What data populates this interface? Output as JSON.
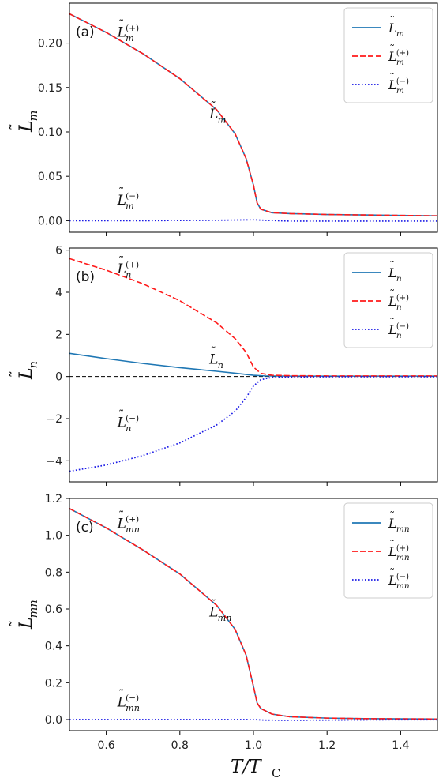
{
  "figure": {
    "xlabel": {
      "main": "T/T",
      "sub": "C"
    }
  },
  "chart_data": [
    {
      "type": "line",
      "panel": "(a)",
      "ylabel": {
        "main": "L",
        "sub": "m"
      },
      "xlim": [
        0.5,
        1.5
      ],
      "ylim": [
        -0.013,
        0.245
      ],
      "x_ticks": [
        0.6,
        0.8,
        1.0,
        1.2,
        1.4
      ],
      "x_tick_labels": [
        "0.6",
        "0.8",
        "1.0",
        "1.2",
        "1.4"
      ],
      "y_ticks": [
        0.0,
        0.05,
        0.1,
        0.15,
        0.2
      ],
      "y_tick_labels": [
        "0.00",
        "0.05",
        "0.10",
        "0.15",
        "0.20"
      ],
      "x_tick_labels_visible": false,
      "zero_line": false,
      "legend_position": "top-right",
      "series": [
        {
          "name_main": "L",
          "sub": "m",
          "sup": "",
          "style": "solid",
          "color": "#1f77b4",
          "x": [
            0.5,
            0.6,
            0.7,
            0.8,
            0.9,
            0.95,
            0.98,
            1.0,
            1.01,
            1.02,
            1.05,
            1.1,
            1.2,
            1.3,
            1.4,
            1.5
          ],
          "y": [
            0.233,
            0.212,
            0.188,
            0.16,
            0.125,
            0.098,
            0.07,
            0.04,
            0.02,
            0.013,
            0.009,
            0.008,
            0.007,
            0.0065,
            0.006,
            0.0055
          ]
        },
        {
          "name_main": "L",
          "sub": "m",
          "sup": "(+)",
          "style": "dashed",
          "color": "#ff1a1a",
          "x": [
            0.5,
            0.6,
            0.7,
            0.8,
            0.9,
            0.95,
            0.98,
            1.0,
            1.01,
            1.02,
            1.05,
            1.1,
            1.2,
            1.3,
            1.4,
            1.5
          ],
          "y": [
            0.233,
            0.212,
            0.188,
            0.16,
            0.125,
            0.098,
            0.07,
            0.04,
            0.02,
            0.013,
            0.009,
            0.008,
            0.007,
            0.0065,
            0.006,
            0.0055
          ]
        },
        {
          "name_main": "L",
          "sub": "m",
          "sup": "(−)",
          "style": "dotted",
          "color": "#1a1ae6",
          "x": [
            0.5,
            0.7,
            0.9,
            1.0,
            1.03,
            1.1,
            1.2,
            1.3,
            1.4,
            1.5
          ],
          "y": [
            0.0,
            0.0,
            0.0005,
            0.001,
            0.0005,
            -0.0005,
            -0.0005,
            -0.0005,
            -0.0005,
            -0.0005
          ]
        }
      ],
      "annotations": [
        {
          "main": "L",
          "sub": "m",
          "sup": "(+)",
          "x": 0.63,
          "y": 0.207
        },
        {
          "main": "L",
          "sub": "m",
          "sup": "",
          "x": 0.88,
          "y": 0.115
        },
        {
          "main": "L",
          "sub": "m",
          "sup": "(−)",
          "x": 0.63,
          "y": 0.018
        }
      ]
    },
    {
      "type": "line",
      "panel": "(b)",
      "ylabel": {
        "main": "L",
        "sub": "n"
      },
      "xlim": [
        0.5,
        1.5
      ],
      "ylim": [
        -5.0,
        6.1
      ],
      "x_ticks": [
        0.6,
        0.8,
        1.0,
        1.2,
        1.4
      ],
      "x_tick_labels": [
        "0.6",
        "0.8",
        "1.0",
        "1.2",
        "1.4"
      ],
      "y_ticks": [
        -4,
        -2,
        0,
        2,
        4,
        6
      ],
      "y_tick_labels": [
        "−4",
        "−2",
        "0",
        "2",
        "4",
        "6"
      ],
      "x_tick_labels_visible": false,
      "zero_line": true,
      "legend_position": "top-right",
      "series": [
        {
          "name_main": "L",
          "sub": "n",
          "sup": "",
          "style": "solid",
          "color": "#1f77b4",
          "x": [
            0.5,
            0.6,
            0.7,
            0.8,
            0.9,
            0.95,
            1.0,
            1.03,
            1.1,
            1.2,
            1.3,
            1.4,
            1.5
          ],
          "y": [
            1.1,
            0.85,
            0.62,
            0.42,
            0.25,
            0.16,
            0.06,
            0.03,
            0.02,
            0.02,
            0.02,
            0.02,
            0.02
          ]
        },
        {
          "name_main": "L",
          "sub": "n",
          "sup": "(+)",
          "style": "dashed",
          "color": "#ff1a1a",
          "x": [
            0.5,
            0.6,
            0.7,
            0.8,
            0.9,
            0.95,
            0.98,
            1.0,
            1.02,
            1.05,
            1.1,
            1.2,
            1.3,
            1.4,
            1.5
          ],
          "y": [
            5.6,
            5.05,
            4.4,
            3.6,
            2.55,
            1.8,
            1.15,
            0.45,
            0.15,
            0.06,
            0.04,
            0.03,
            0.03,
            0.03,
            0.03
          ]
        },
        {
          "name_main": "L",
          "sub": "n",
          "sup": "(−)",
          "style": "dotted",
          "color": "#1a1ae6",
          "x": [
            0.5,
            0.6,
            0.7,
            0.8,
            0.9,
            0.95,
            0.98,
            1.0,
            1.02,
            1.05,
            1.1,
            1.2,
            1.3,
            1.4,
            1.5
          ],
          "y": [
            -4.5,
            -4.2,
            -3.75,
            -3.15,
            -2.3,
            -1.65,
            -1.0,
            -0.45,
            -0.15,
            -0.04,
            -0.02,
            -0.01,
            -0.01,
            -0.01,
            -0.01
          ]
        }
      ],
      "annotations": [
        {
          "main": "L",
          "sub": "n",
          "sup": "(+)",
          "x": 0.63,
          "y": 4.9
        },
        {
          "main": "L",
          "sub": "n",
          "sup": "",
          "x": 0.88,
          "y": 0.6
        },
        {
          "main": "L",
          "sub": "n",
          "sup": "(−)",
          "x": 0.63,
          "y": -2.4
        }
      ]
    },
    {
      "type": "line",
      "panel": "(c)",
      "ylabel": {
        "main": "L",
        "sub": "mn"
      },
      "xlim": [
        0.5,
        1.5
      ],
      "ylim": [
        -0.06,
        1.2
      ],
      "x_ticks": [
        0.6,
        0.8,
        1.0,
        1.2,
        1.4
      ],
      "x_tick_labels": [
        "0.6",
        "0.8",
        "1.0",
        "1.2",
        "1.4"
      ],
      "y_ticks": [
        0.0,
        0.2,
        0.4,
        0.6,
        0.8,
        1.0,
        1.2
      ],
      "y_tick_labels": [
        "0.0",
        "0.2",
        "0.4",
        "0.6",
        "0.8",
        "1.0",
        "1.2"
      ],
      "x_tick_labels_visible": true,
      "zero_line": false,
      "legend_position": "top-right",
      "series": [
        {
          "name_main": "L",
          "sub": "mn",
          "sup": "",
          "style": "solid",
          "color": "#1f77b4",
          "x": [
            0.5,
            0.6,
            0.7,
            0.8,
            0.9,
            0.95,
            0.98,
            1.0,
            1.01,
            1.02,
            1.05,
            1.1,
            1.2,
            1.3,
            1.4,
            1.5
          ],
          "y": [
            1.145,
            1.04,
            0.92,
            0.79,
            0.62,
            0.49,
            0.35,
            0.18,
            0.09,
            0.06,
            0.03,
            0.015,
            0.008,
            0.005,
            0.004,
            0.003
          ]
        },
        {
          "name_main": "L",
          "sub": "mn",
          "sup": "(+)",
          "style": "dashed",
          "color": "#ff1a1a",
          "x": [
            0.5,
            0.6,
            0.7,
            0.8,
            0.9,
            0.95,
            0.98,
            1.0,
            1.01,
            1.02,
            1.05,
            1.1,
            1.2,
            1.3,
            1.4,
            1.5
          ],
          "y": [
            1.145,
            1.04,
            0.92,
            0.79,
            0.62,
            0.49,
            0.35,
            0.18,
            0.09,
            0.06,
            0.03,
            0.015,
            0.008,
            0.005,
            0.004,
            0.003
          ]
        },
        {
          "name_main": "L",
          "sub": "mn",
          "sup": "(−)",
          "style": "dotted",
          "color": "#1a1ae6",
          "x": [
            0.5,
            0.7,
            0.9,
            1.0,
            1.03,
            1.1,
            1.2,
            1.3,
            1.4,
            1.5
          ],
          "y": [
            0.0,
            0.0,
            0.0,
            0.0,
            -0.003,
            -0.004,
            -0.003,
            -0.002,
            -0.001,
            -0.001
          ]
        }
      ],
      "annotations": [
        {
          "main": "L",
          "sub": "mn",
          "sup": "(+)",
          "x": 0.63,
          "y": 1.04
        },
        {
          "main": "L",
          "sub": "mn",
          "sup": "",
          "x": 0.88,
          "y": 0.56
        },
        {
          "main": "L",
          "sub": "mn",
          "sup": "(−)",
          "x": 0.63,
          "y": 0.07
        }
      ]
    }
  ]
}
